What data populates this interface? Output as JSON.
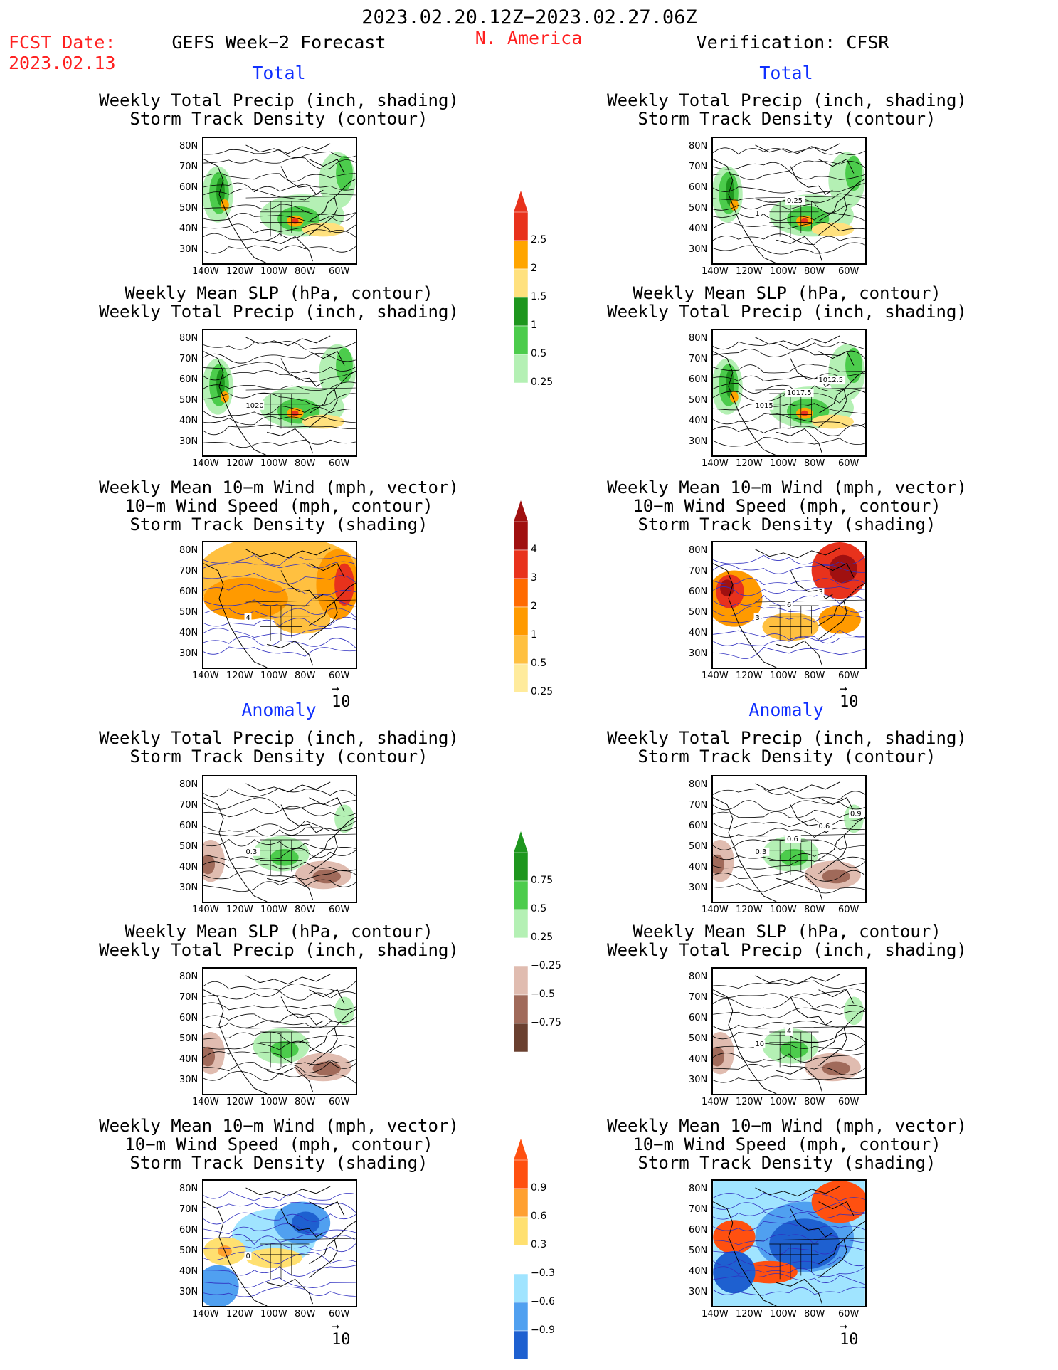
{
  "header": {
    "date_range": "2023.02.20.12Z−2023.02.27.06Z",
    "fcst_label": "FCST Date:",
    "fcst_date": "2023.02.13",
    "model": "GEFS Week−2 Forecast",
    "region": "N. America",
    "verification": "Verification: CFSR"
  },
  "sections": {
    "total": "Total",
    "anomaly": "Anomaly"
  },
  "titles": {
    "precip_storm": [
      "Weekly Total Precip (inch, shading)",
      "Storm Track Density (contour)"
    ],
    "slp_precip": [
      "Weekly Mean SLP (hPa, contour)",
      "Weekly Total Precip (inch, shading)"
    ],
    "wind_storm": [
      "Weekly Mean 10−m Wind (mph, vector)",
      "10−m Wind Speed (mph, contour)",
      "Storm Track Density (shading)"
    ]
  },
  "axes": {
    "lat_ticks": [
      "80N",
      "70N",
      "60N",
      "50N",
      "40N",
      "30N"
    ],
    "lon_ticks": [
      "140W",
      "120W",
      "100W",
      "80W",
      "60W"
    ]
  },
  "vector_ref": "10",
  "colorbars": {
    "precip_total": {
      "labels": [
        "2.5",
        "2",
        "1.5",
        "1",
        "0.5",
        "0.25"
      ],
      "colors": [
        "#e8321c",
        "#ffa500",
        "#ffe17e",
        "#1e961e",
        "#4ccc4c",
        "#b4f0b4"
      ]
    },
    "storm_total": {
      "labels": [
        "4",
        "3",
        "2",
        "1",
        "0.5",
        "0.25"
      ],
      "colors": [
        "#a01010",
        "#e8321c",
        "#ff6a00",
        "#ff9a00",
        "#ffc040",
        "#ffeb9c"
      ]
    },
    "precip_anom": {
      "labels": [
        "0.75",
        "0.5",
        "0.25",
        "−0.25",
        "−0.5",
        "−0.75"
      ],
      "colors": [
        "#1e961e",
        "#4ccc4c",
        "#b4f0b4",
        "#ffffff",
        "#e0bcb0",
        "#a06a5a",
        "#6a4030"
      ]
    },
    "storm_anom": {
      "labels": [
        "0.9",
        "0.6",
        "0.3",
        "−0.3",
        "−0.6",
        "−0.9"
      ],
      "colors": [
        "#ff5010",
        "#ffa030",
        "#ffe070",
        "#ffffff",
        "#a0e4ff",
        "#50a0f0",
        "#1e60d0"
      ]
    }
  },
  "contour_labels": {
    "fcst_precip_storm": [
      "0.3"
    ],
    "fcst_slp": [
      "1020"
    ],
    "fcst_wind": [
      "4"
    ],
    "fcst_wind_anom": [
      "0"
    ],
    "ver_precip_storm": [
      "1",
      "0.25"
    ],
    "ver_slp": [
      "1015",
      "1017.5",
      "1012.5"
    ],
    "ver_wind": [
      "3",
      "6",
      "3"
    ],
    "ver_precip_anom": [
      "0.3",
      "0.6",
      "0.6",
      "0.9"
    ],
    "ver_slp_anom": [
      "10",
      "4"
    ]
  }
}
